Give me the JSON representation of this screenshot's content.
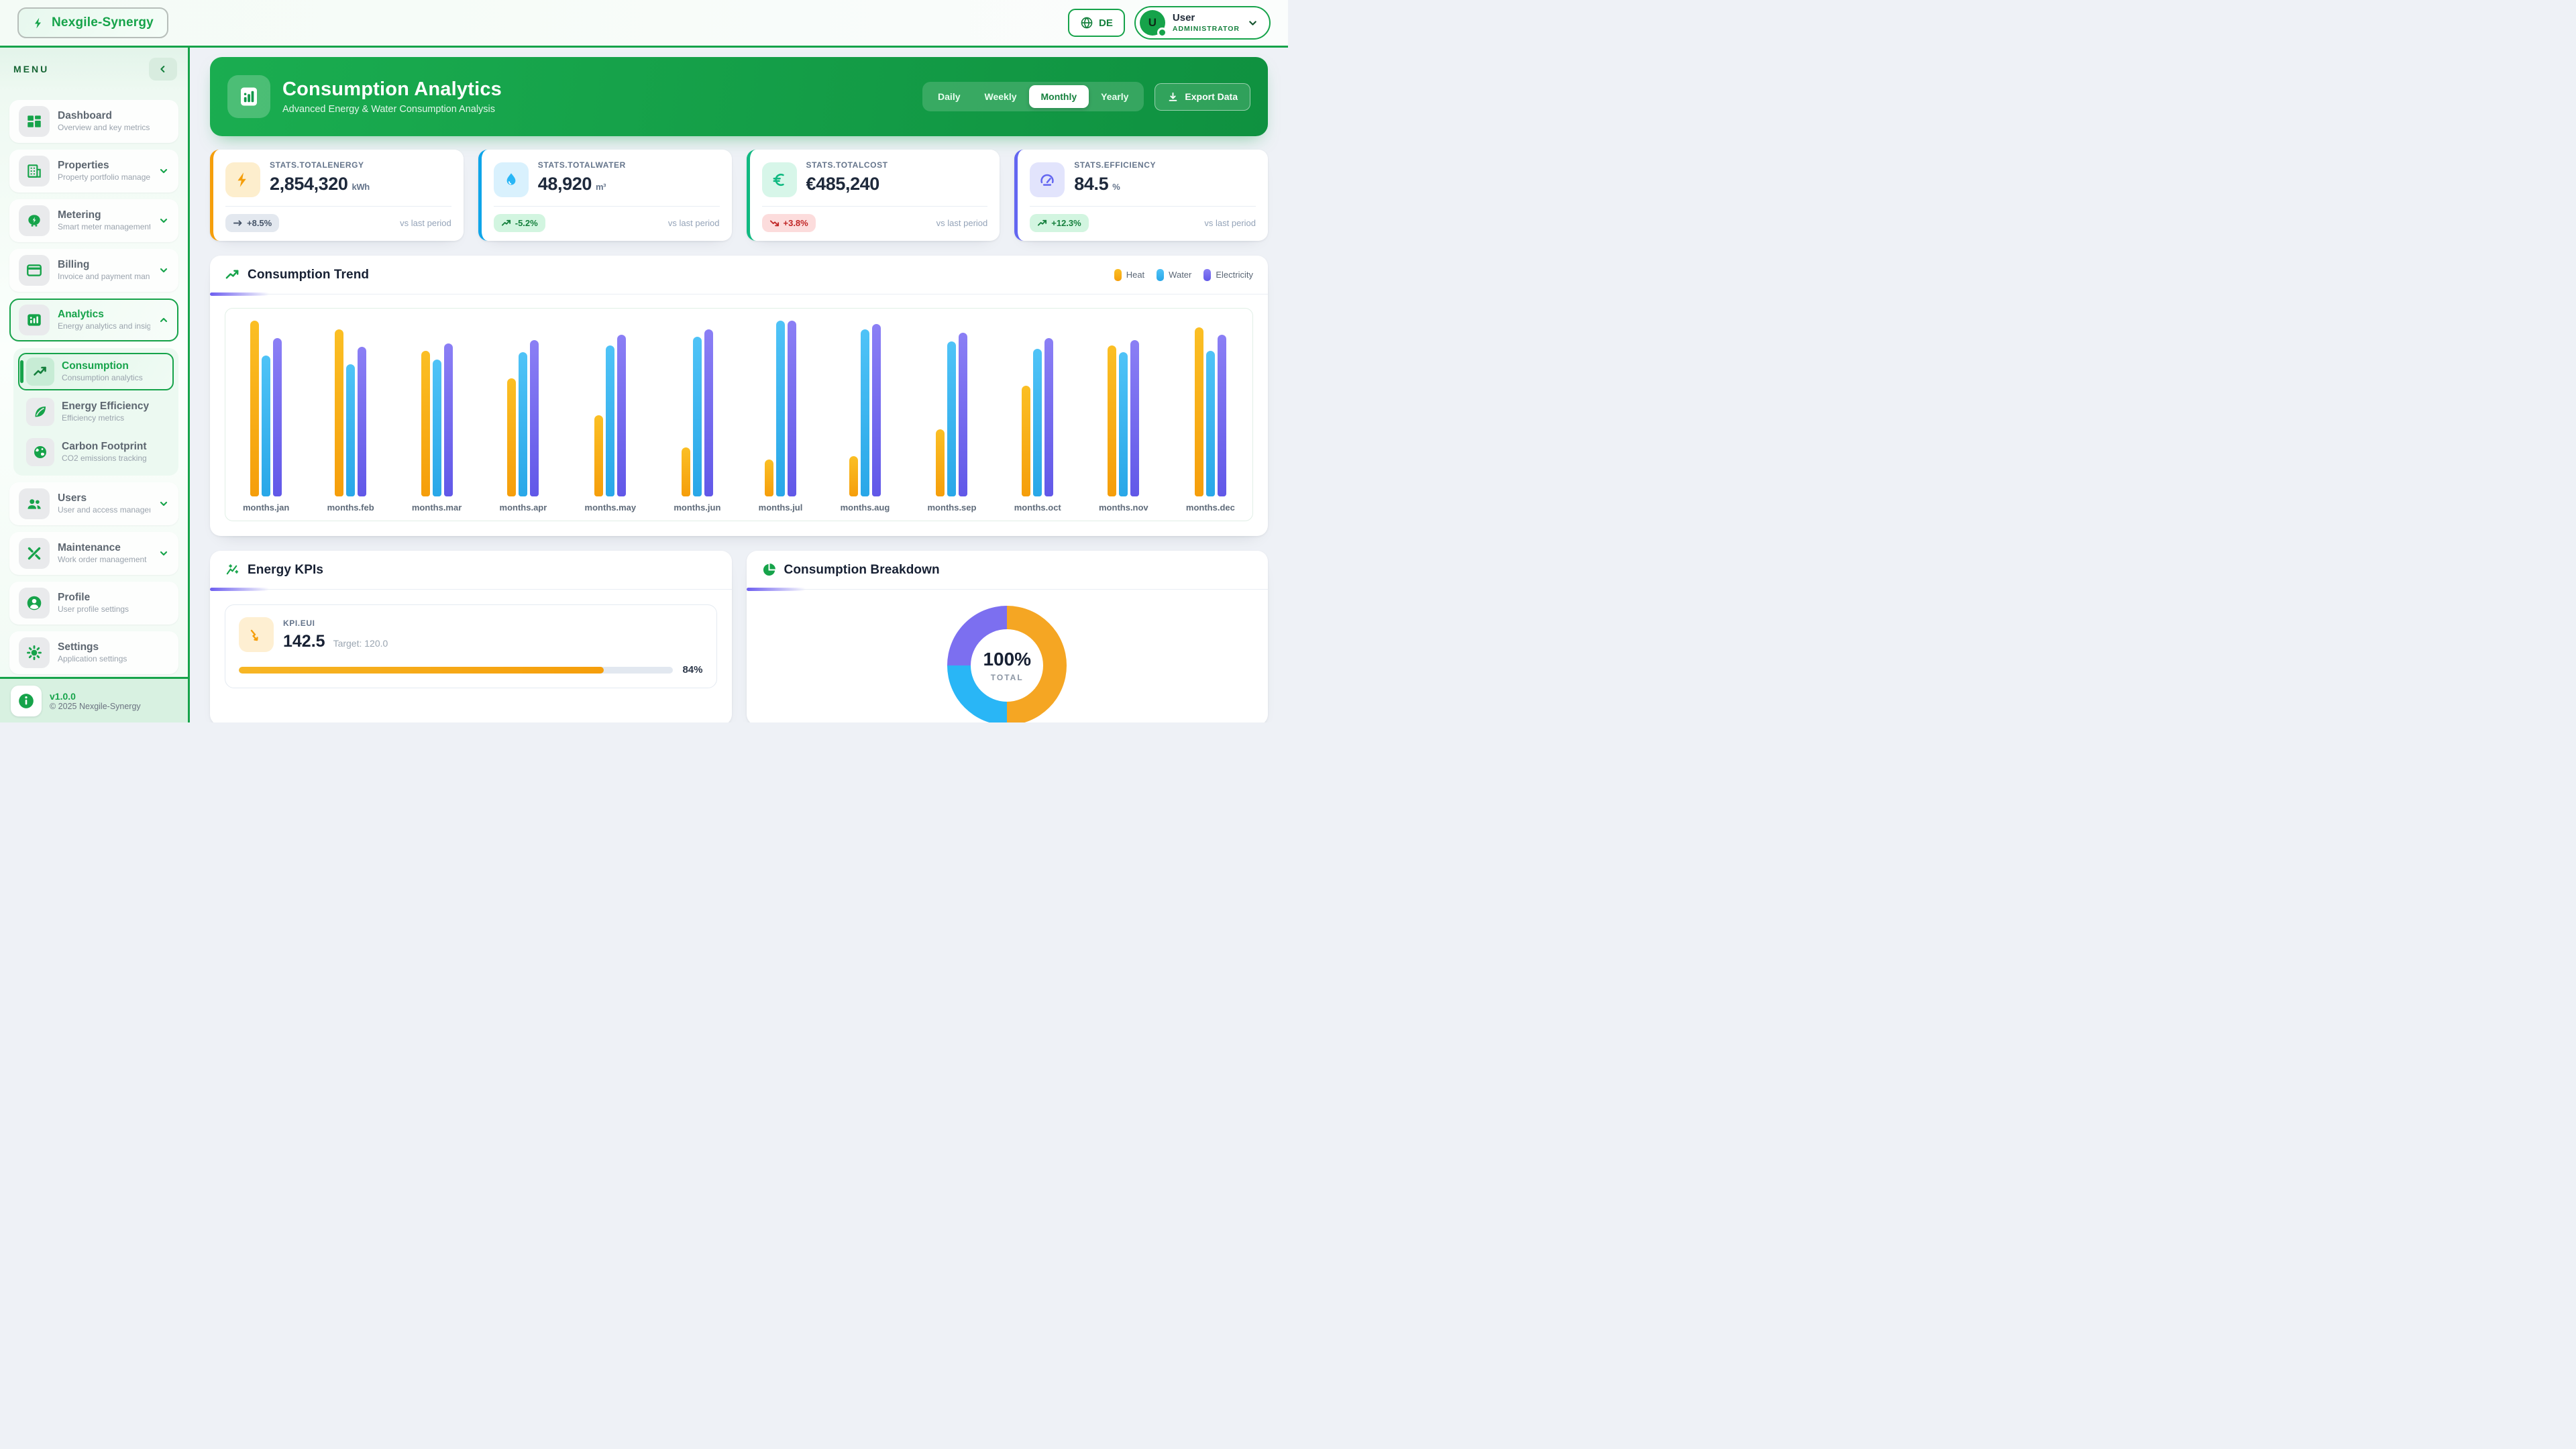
{
  "topbar": {
    "logo": "Nexgile-Synergy",
    "language": "DE",
    "user": {
      "initial": "U",
      "name": "User",
      "role": "ADMINISTRATOR"
    }
  },
  "sidebar": {
    "menu_label": "MENU",
    "items": [
      {
        "label": "Dashboard",
        "desc": "Overview and key metrics",
        "icon": "dashboard",
        "expandable": false,
        "active": false
      },
      {
        "label": "Properties",
        "desc": "Property portfolio manage...",
        "icon": "building",
        "expandable": true,
        "active": false
      },
      {
        "label": "Metering",
        "desc": "Smart meter management",
        "icon": "meter",
        "expandable": true,
        "active": false
      },
      {
        "label": "Billing",
        "desc": "Invoice and payment mana...",
        "icon": "credit-card",
        "expandable": true,
        "active": false
      },
      {
        "label": "Analytics",
        "desc": "Energy analytics and insig...",
        "icon": "analytics",
        "expandable": true,
        "active": true,
        "expanded": true
      }
    ],
    "submenu": [
      {
        "label": "Consumption",
        "desc": "Consumption analytics",
        "icon": "trend",
        "active": true
      },
      {
        "label": "Energy Efficiency",
        "desc": "Efficiency metrics",
        "icon": "leaf",
        "active": false
      },
      {
        "label": "Carbon Footprint",
        "desc": "CO2 emissions tracking",
        "icon": "globe",
        "active": false
      }
    ],
    "items_after": [
      {
        "label": "Users",
        "desc": "User and access managem...",
        "icon": "users",
        "expandable": true,
        "active": false
      },
      {
        "label": "Maintenance",
        "desc": "Work order management",
        "icon": "tools",
        "expandable": true,
        "active": false
      },
      {
        "label": "Profile",
        "desc": "User profile settings",
        "icon": "person",
        "expandable": false,
        "active": false
      },
      {
        "label": "Settings",
        "desc": "Application settings",
        "icon": "gear",
        "expandable": false,
        "active": false
      }
    ],
    "footer": {
      "version": "v1.0.0",
      "copyright": "© 2025 Nexgile-Synergy"
    }
  },
  "header": {
    "title": "Consumption Analytics",
    "subtitle": "Advanced Energy & Water Consumption Analysis",
    "periods": [
      "Daily",
      "Weekly",
      "Monthly",
      "Yearly"
    ],
    "active_period": "Monthly",
    "export_label": "Export Data"
  },
  "stats": [
    {
      "label": "STATS.TOTALENERGY",
      "value": "2,854,320",
      "unit": "kWh",
      "change": "+8.5%",
      "badge_style": "neutral",
      "trend_icon": "arrow-flat",
      "accent": "#f59e0b",
      "icon": "zap",
      "icon_bg": "#fdeecd",
      "icon_color": "#f59e0b",
      "compare": "vs last period"
    },
    {
      "label": "STATS.TOTALWATER",
      "value": "48,920",
      "unit": "m³",
      "change": "-5.2%",
      "badge_style": "positive",
      "trend_icon": "trend-up-badge",
      "accent": "#0ea5e9",
      "icon": "drop",
      "icon_bg": "#d9f1fd",
      "icon_color": "#29b6f6",
      "compare": "vs last period"
    },
    {
      "label": "STATS.TOTALCOST",
      "value": "€485,240",
      "unit": "",
      "change": "+3.8%",
      "badge_style": "negative",
      "trend_icon": "trend-down-badge",
      "accent": "#10b981",
      "icon": "euro",
      "icon_bg": "#d7f6e9",
      "icon_color": "#10b981",
      "compare": "vs last period"
    },
    {
      "label": "STATS.EFFICIENCY",
      "value": "84.5",
      "unit": "%",
      "change": "+12.3%",
      "badge_style": "positive",
      "trend_icon": "trend-up-badge",
      "accent": "#6366f1",
      "icon": "gauge",
      "icon_bg": "#e2e4fc",
      "icon_color": "#6366f1",
      "compare": "vs last period"
    }
  ],
  "trend_section": {
    "title": "Consumption Trend"
  },
  "kpi_section": {
    "title": "Energy KPIs",
    "kpis": [
      {
        "label": "KPI.EUI",
        "value": "142.5",
        "target": "Target: 120.0",
        "progress_pct": 84,
        "progress_label": "84%"
      }
    ]
  },
  "breakdown_section": {
    "title": "Consumption Breakdown"
  },
  "chart_data": [
    {
      "type": "bar",
      "title": "Consumption Trend",
      "categories": [
        "months.jan",
        "months.feb",
        "months.mar",
        "months.apr",
        "months.may",
        "months.jun",
        "months.jul",
        "months.aug",
        "months.sep",
        "months.oct",
        "months.nov",
        "months.dec"
      ],
      "series": [
        {
          "name": "Heat",
          "color": "#f59e0b",
          "color_light": "#fbbf24",
          "values": [
            100,
            95,
            83,
            67,
            46,
            28,
            21,
            23,
            38,
            63,
            86,
            96
          ]
        },
        {
          "name": "Water",
          "color": "#29a7e8",
          "color_light": "#4fc3f7",
          "values": [
            80,
            75,
            78,
            82,
            86,
            91,
            100,
            95,
            88,
            84,
            82,
            83
          ]
        },
        {
          "name": "Electricity",
          "color": "#6158e8",
          "color_light": "#8b7ff5",
          "values": [
            90,
            85,
            87,
            89,
            92,
            95,
            100,
            98,
            93,
            90,
            89,
            92
          ]
        }
      ],
      "ylim": [
        0,
        100
      ],
      "grid": false,
      "legend_position": "top-right"
    },
    {
      "type": "pie",
      "title": "Consumption Breakdown",
      "center_value": "100%",
      "center_label": "TOTAL",
      "slices": [
        {
          "label": "Heat",
          "color": "#f5a623",
          "pct": 50
        },
        {
          "label": "Water",
          "color": "#29b6f6",
          "pct": 25
        },
        {
          "label": "Electricity",
          "color": "#7c6ff0",
          "pct": 25
        }
      ]
    }
  ]
}
